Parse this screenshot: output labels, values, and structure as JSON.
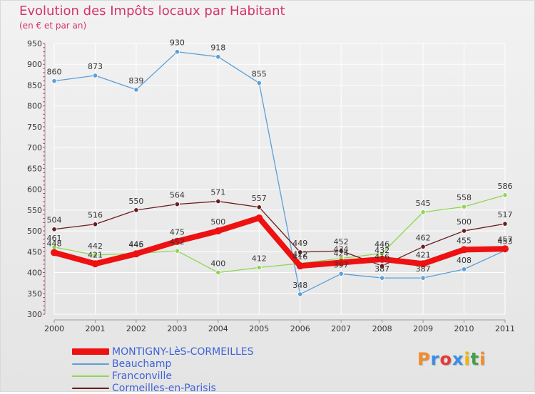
{
  "header": {
    "title": "Evolution des Impôts locaux par Habitant",
    "subtitle": "(en € et par an)"
  },
  "logo": {
    "text": "Proxiti",
    "colors": [
      "#f28c28",
      "#3a8ee6",
      "#e53935",
      "#3a8ee6",
      "#f2b705",
      "#43a047",
      "#f28c28"
    ]
  },
  "colors": {
    "axis_text": "#333333",
    "grid": "#ffffff",
    "tick_accent": "#d6336c",
    "title": "#d6336c",
    "legend_text": "#3f63d8"
  },
  "chart_data": {
    "type": "line",
    "title": "Evolution des Impôts locaux par Habitant",
    "subtitle": "(en € et par an)",
    "xlabel": "",
    "ylabel": "",
    "categories": [
      "2000",
      "2001",
      "2002",
      "2003",
      "2004",
      "2005",
      "2006",
      "2007",
      "2008",
      "2009",
      "2010",
      "2011"
    ],
    "ylim": [
      300,
      950
    ],
    "yticks": [
      300,
      350,
      400,
      450,
      500,
      550,
      600,
      650,
      700,
      750,
      800,
      850,
      900,
      950
    ],
    "grid": true,
    "legend": "bottom-left",
    "series": [
      {
        "name": "MONTIGNY-LèS-CORMEILLES",
        "color": "#ee1111",
        "values": [
          448,
          421,
          445,
          475,
          500,
          531,
          416,
          424,
          432,
          421,
          455,
          457
        ],
        "labels": [
          "448",
          "421",
          "445",
          "475",
          "500",
          "",
          "416",
          "424",
          "432",
          "421",
          "455",
          "457"
        ]
      },
      {
        "name": "Beauchamp",
        "color": "#5b9fd8",
        "values": [
          860,
          873,
          839,
          930,
          918,
          855,
          348,
          397,
          387,
          387,
          408,
          453
        ],
        "labels": [
          "860",
          "873",
          "839",
          "930",
          "918",
          "855",
          "348",
          "397",
          "387",
          "387",
          "408",
          "453"
        ]
      },
      {
        "name": "Franconville",
        "color": "#8ed650",
        "values": [
          461,
          442,
          446,
          452,
          400,
          412,
          422,
          434,
          446,
          545,
          558,
          586
        ],
        "labels": [
          "461",
          "442",
          "446",
          "452",
          "400",
          "412",
          "422",
          "434",
          "446",
          "545",
          "558",
          "586"
        ]
      },
      {
        "name": "Cormeilles-en-Parisis",
        "color": "#6b1c1c",
        "values": [
          504,
          516,
          550,
          564,
          571,
          557,
          449,
          452,
          416,
          462,
          500,
          517
        ],
        "labels": [
          "504",
          "516",
          "550",
          "564",
          "571",
          "557",
          "449",
          "452",
          "416",
          "462",
          "500",
          "517"
        ]
      }
    ]
  }
}
